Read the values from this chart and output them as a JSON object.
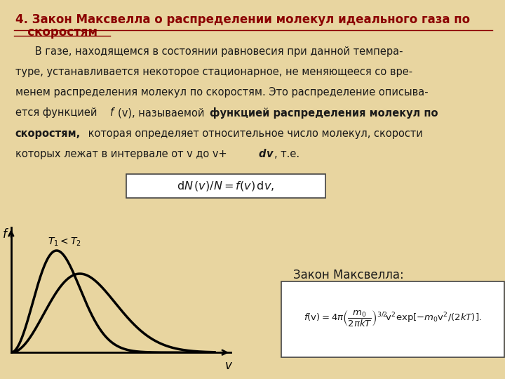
{
  "background_color": "#e8d5a0",
  "title_line1": "4. Закон Максвелла о распределении молекул идеального газа по",
  "title_line2": "   скоростям",
  "title_color": "#8B0000",
  "title_fontsize": 12,
  "maxwell_label": "Закон Максвелла:",
  "graph_xlabel": "v",
  "graph_ylabel": "f",
  "curve_color": "#000000",
  "text_color": "#1a1a1a",
  "box_facecolor": "#ffffff",
  "box_edgecolor": "#444444"
}
